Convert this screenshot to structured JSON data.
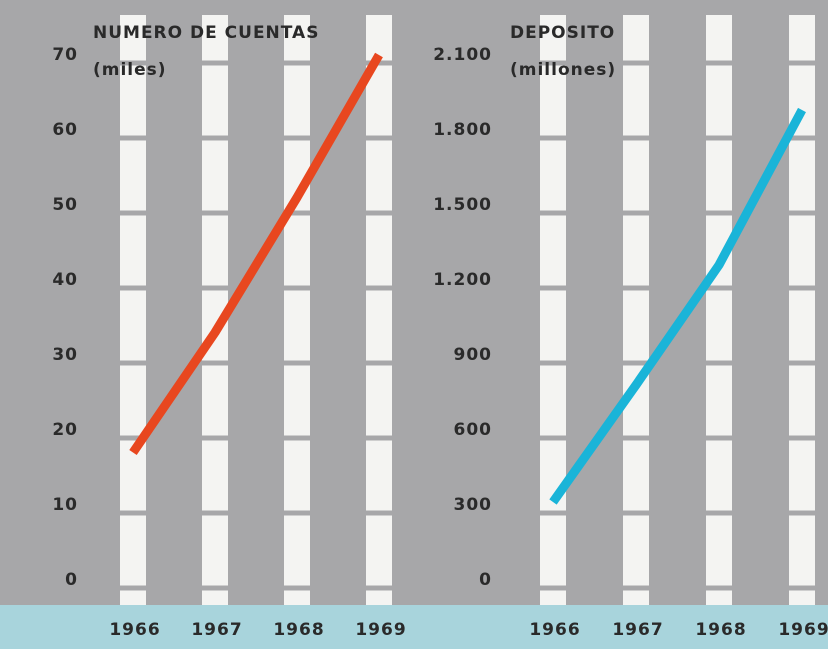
{
  "chart_data": [
    {
      "type": "line",
      "title": "NUMERO DE CUENTAS",
      "subtitle": "(miles)",
      "categories": [
        "1966",
        "1967",
        "1968",
        "1969"
      ],
      "values": [
        17,
        33,
        51,
        70
      ],
      "color": "#e8471f",
      "ylim": [
        0,
        70
      ],
      "yticks": [
        0,
        10,
        20,
        30,
        40,
        50,
        60,
        70
      ]
    },
    {
      "type": "line",
      "title": "DEPOSITO",
      "subtitle": "(millones)",
      "categories": [
        "1966",
        "1967",
        "1968",
        "1969"
      ],
      "values": [
        312,
        780,
        1260,
        1880
      ],
      "color": "#1ab4d8",
      "ylim": [
        0,
        2100
      ],
      "yticks": [
        0,
        300,
        600,
        900,
        {
          "value": 1200,
          "label": "1.200"
        },
        {
          "value": 1500,
          "label": "1.500"
        },
        {
          "value": 1800,
          "label": "1.800"
        },
        {
          "value": 2100,
          "label": "2.100"
        }
      ]
    }
  ]
}
